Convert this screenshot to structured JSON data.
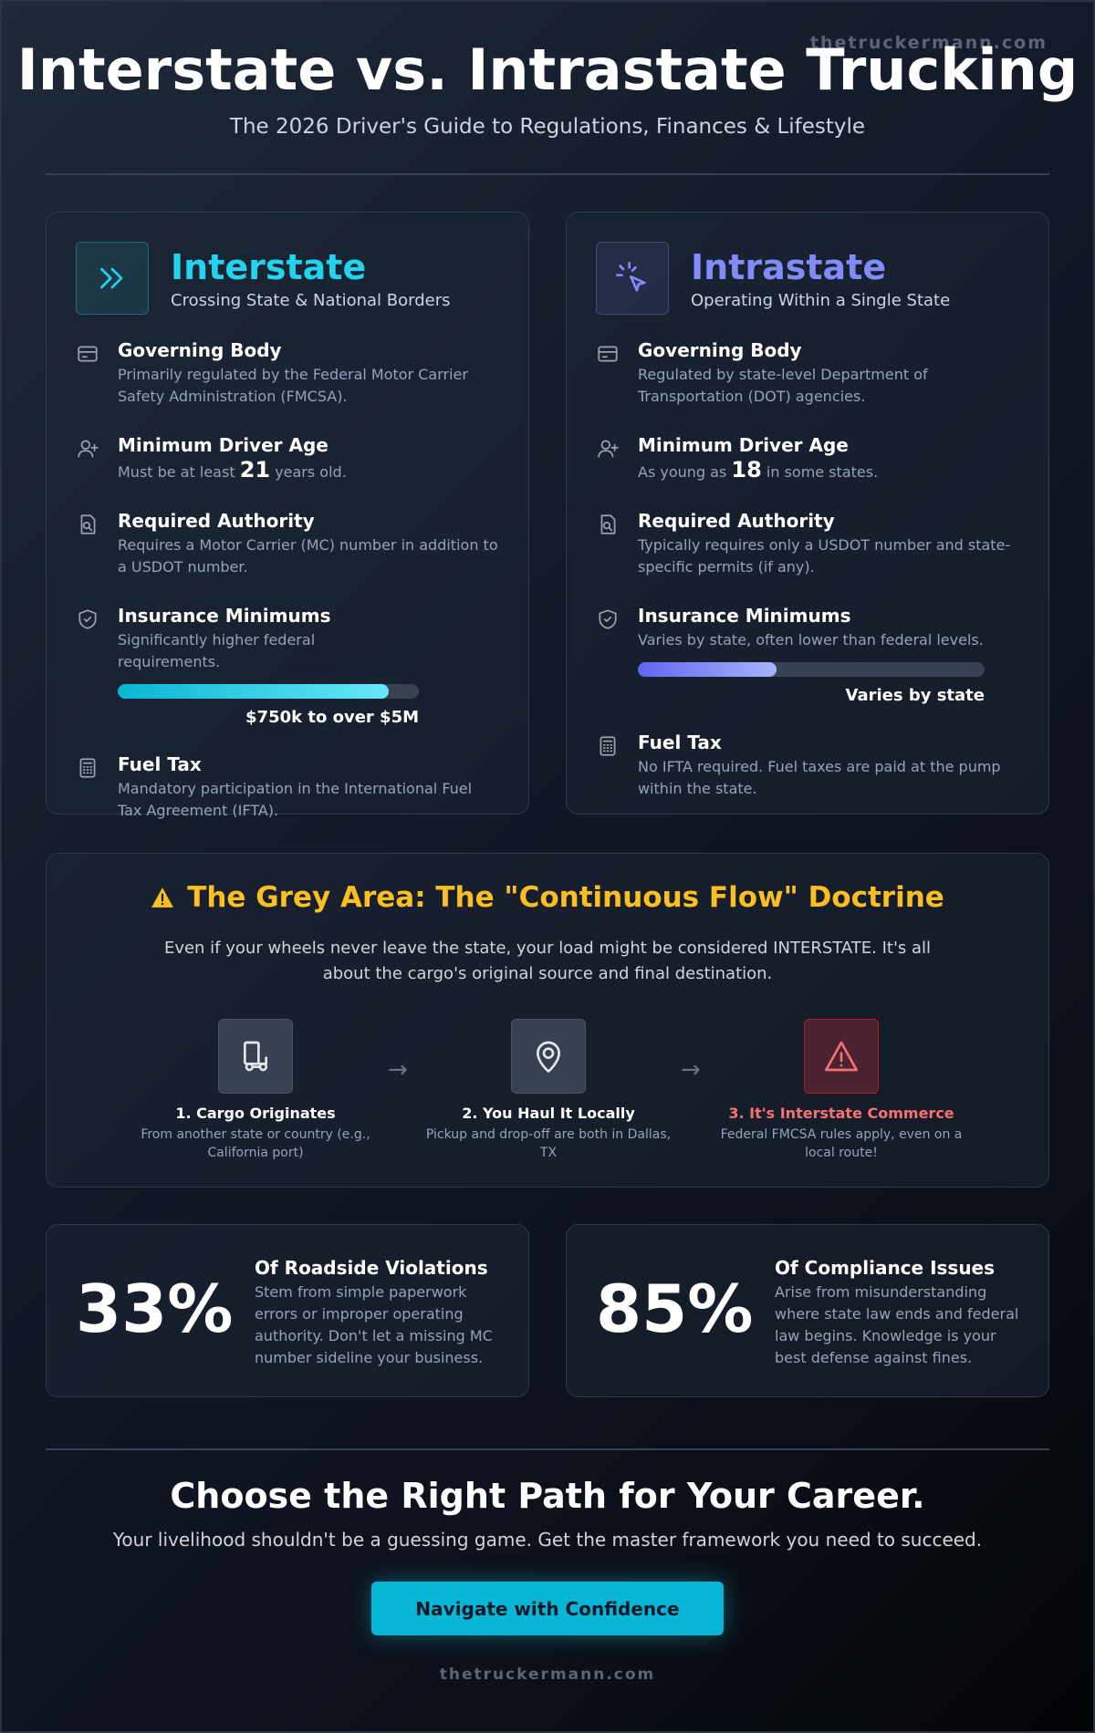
{
  "watermark": "thetruckermann.com",
  "header": {
    "title": "Interstate vs. Intrastate Trucking",
    "subtitle": "The 2026 Driver's Guide to Regulations, Finances & Lifestyle"
  },
  "cards": [
    {
      "title": "Interstate",
      "subtitle": "Crossing State & National Borders",
      "accent": "#22d3ee",
      "bar_from": "#06b6d4",
      "bar_to": "#67e8f9",
      "items": [
        {
          "title": "Governing Body",
          "text": "Primarily regulated by the Federal Motor Carrier Safety Administration (FMCSA)."
        },
        {
          "title": "Minimum Driver Age",
          "prefix": "Must be at least",
          "highlight": "21",
          "suffix": "years old."
        },
        {
          "title": "Required Authority",
          "text": "Requires a Motor Carrier (MC) number in addition to a USDOT number."
        },
        {
          "title": "Insurance Minimums",
          "text": "Significantly higher federal requirements.",
          "fill": 90,
          "bar_label": "$750k to over $5M"
        },
        {
          "title": "Fuel Tax",
          "text": "Mandatory participation in the International Fuel Tax Agreement (IFTA)."
        }
      ]
    },
    {
      "title": "Intrastate",
      "subtitle": "Operating Within a Single State",
      "accent": "#818cf8",
      "bar_from": "#6366f1",
      "bar_to": "#a5b4fc",
      "items": [
        {
          "title": "Governing Body",
          "text": "Regulated by state-level Department of Transportation (DOT) agencies."
        },
        {
          "title": "Minimum Driver Age",
          "prefix": "As young as",
          "highlight": "18",
          "suffix": "in some states."
        },
        {
          "title": "Required Authority",
          "text": "Typically requires only a USDOT number and state-specific permits (if any)."
        },
        {
          "title": "Insurance Minimums",
          "text": "Varies by state, often lower than federal levels.",
          "fill": 40,
          "bar_label": "Varies by state"
        },
        {
          "title": "Fuel Tax",
          "text": "No IFTA required. Fuel taxes are paid at the pump within the state."
        }
      ]
    }
  ],
  "grey_area": {
    "title": "The Grey Area: The \"Continuous Flow\" Doctrine",
    "text": "Even if your wheels never leave the state, your load might be considered INTERSTATE. It's all about the cargo's original source and final destination.",
    "steps": [
      {
        "title": "1. Cargo Originates",
        "text": "From another state or country (e.g., California port)"
      },
      {
        "title": "2. You Haul It Locally",
        "text": "Pickup and drop-off are both in Dallas, TX"
      },
      {
        "title": "3. It's Interstate Commerce",
        "text": "Federal FMCSA rules apply, even on a local route!"
      }
    ]
  },
  "stats": [
    {
      "value": "33%",
      "title": "Of Roadside Violations",
      "text": "Stem from simple paperwork errors or improper operating authority. Don't let a missing MC number sideline your business."
    },
    {
      "value": "85%",
      "title": "Of Compliance Issues",
      "text": "Arise from misunderstanding where state law ends and federal law begins. Knowledge is your best defense against fines."
    }
  ],
  "cta": {
    "title": "Choose the Right Path for Your Career.",
    "text": "Your livelihood shouldn't be a guessing game. Get the master framework you need to succeed.",
    "button": "Navigate with Confidence"
  },
  "footer": "thetruckermann.com"
}
